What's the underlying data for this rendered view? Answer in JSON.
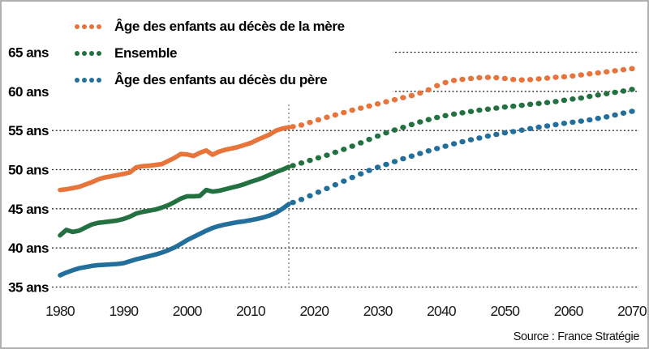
{
  "source_note": "Source : France Stratégie",
  "legend": {
    "items": [
      {
        "label": "Âge des enfants au décès de la mère",
        "color": "#E6743B"
      },
      {
        "label": "Ensemble",
        "color": "#237140"
      },
      {
        "label": "Âge des enfants au décès du père",
        "color": "#236F9C"
      }
    ]
  },
  "chart_data": {
    "type": "line",
    "title": "",
    "xlabel": "",
    "ylabel": "",
    "unit": "ans",
    "xlim": [
      1980,
      2070
    ],
    "ylim": [
      35,
      65
    ],
    "grid": "horizontal-dashed",
    "legend_position": "top-left",
    "projection_divider_year": 2016,
    "x_ticks": [
      1980,
      1990,
      2000,
      2010,
      2020,
      2030,
      2040,
      2050,
      2060,
      2070
    ],
    "y_ticks": [
      {
        "value": 65,
        "label": "65 ans"
      },
      {
        "value": 60,
        "label": "60 ans"
      },
      {
        "value": 55,
        "label": "55 ans"
      },
      {
        "value": 50,
        "label": "50 ans"
      },
      {
        "value": 45,
        "label": "45 ans"
      },
      {
        "value": 40,
        "label": "40 ans"
      },
      {
        "value": 35,
        "label": "35 ans"
      }
    ],
    "series": [
      {
        "name": "Âge des enfants au décès de la mère",
        "color": "#E6743B",
        "style_historical": "thick-line",
        "style_projection": "dots",
        "historical": [
          [
            1980,
            47.4
          ],
          [
            1981,
            47.5
          ],
          [
            1982,
            47.65
          ],
          [
            1983,
            47.8
          ],
          [
            1984,
            48.1
          ],
          [
            1985,
            48.4
          ],
          [
            1986,
            48.75
          ],
          [
            1987,
            49.0
          ],
          [
            1988,
            49.15
          ],
          [
            1989,
            49.3
          ],
          [
            1990,
            49.45
          ],
          [
            1991,
            49.65
          ],
          [
            1992,
            50.3
          ],
          [
            1993,
            50.45
          ],
          [
            1994,
            50.5
          ],
          [
            1995,
            50.6
          ],
          [
            1996,
            50.7
          ],
          [
            1997,
            51.1
          ],
          [
            1998,
            51.5
          ],
          [
            1999,
            52.0
          ],
          [
            2000,
            51.95
          ],
          [
            2001,
            51.75
          ],
          [
            2002,
            52.15
          ],
          [
            2003,
            52.45
          ],
          [
            2004,
            51.9
          ],
          [
            2005,
            52.3
          ],
          [
            2006,
            52.55
          ],
          [
            2007,
            52.7
          ],
          [
            2008,
            52.9
          ],
          [
            2009,
            53.15
          ],
          [
            2010,
            53.4
          ],
          [
            2011,
            53.8
          ],
          [
            2012,
            54.15
          ],
          [
            2013,
            54.5
          ],
          [
            2014,
            55.0
          ],
          [
            2015,
            55.25
          ],
          [
            2016,
            55.4
          ]
        ],
        "projection": [
          [
            2018,
            55.7
          ],
          [
            2020,
            56.2
          ],
          [
            2022,
            56.7
          ],
          [
            2024,
            57.15
          ],
          [
            2026,
            57.6
          ],
          [
            2028,
            58.0
          ],
          [
            2030,
            58.4
          ],
          [
            2032,
            58.8
          ],
          [
            2034,
            59.2
          ],
          [
            2036,
            59.6
          ],
          [
            2038,
            60.2
          ],
          [
            2040,
            61.0
          ],
          [
            2042,
            61.4
          ],
          [
            2044,
            61.6
          ],
          [
            2046,
            61.75
          ],
          [
            2048,
            61.8
          ],
          [
            2050,
            61.65
          ],
          [
            2052,
            61.45
          ],
          [
            2054,
            61.5
          ],
          [
            2056,
            61.65
          ],
          [
            2058,
            61.8
          ],
          [
            2060,
            61.9
          ],
          [
            2062,
            62.1
          ],
          [
            2064,
            62.3
          ],
          [
            2066,
            62.5
          ],
          [
            2068,
            62.7
          ],
          [
            2070,
            62.9
          ]
        ]
      },
      {
        "name": "Ensemble",
        "color": "#237140",
        "style_historical": "thick-line",
        "style_projection": "dots",
        "historical": [
          [
            1980,
            41.6
          ],
          [
            1981,
            42.3
          ],
          [
            1982,
            42.05
          ],
          [
            1983,
            42.2
          ],
          [
            1984,
            42.6
          ],
          [
            1985,
            43.0
          ],
          [
            1986,
            43.2
          ],
          [
            1987,
            43.3
          ],
          [
            1988,
            43.4
          ],
          [
            1989,
            43.5
          ],
          [
            1990,
            43.7
          ],
          [
            1991,
            44.0
          ],
          [
            1992,
            44.4
          ],
          [
            1993,
            44.6
          ],
          [
            1994,
            44.75
          ],
          [
            1995,
            44.9
          ],
          [
            1996,
            45.15
          ],
          [
            1997,
            45.45
          ],
          [
            1998,
            45.85
          ],
          [
            1999,
            46.3
          ],
          [
            2000,
            46.6
          ],
          [
            2001,
            46.6
          ],
          [
            2002,
            46.65
          ],
          [
            2003,
            47.4
          ],
          [
            2004,
            47.2
          ],
          [
            2005,
            47.3
          ],
          [
            2006,
            47.5
          ],
          [
            2007,
            47.7
          ],
          [
            2008,
            47.9
          ],
          [
            2009,
            48.15
          ],
          [
            2010,
            48.45
          ],
          [
            2011,
            48.7
          ],
          [
            2012,
            49.0
          ],
          [
            2013,
            49.35
          ],
          [
            2014,
            49.7
          ],
          [
            2015,
            50.0
          ],
          [
            2016,
            50.35
          ]
        ],
        "projection": [
          [
            2018,
            50.85
          ],
          [
            2020,
            51.35
          ],
          [
            2022,
            51.85
          ],
          [
            2024,
            52.4
          ],
          [
            2026,
            53.0
          ],
          [
            2028,
            53.65
          ],
          [
            2030,
            54.3
          ],
          [
            2032,
            54.9
          ],
          [
            2034,
            55.4
          ],
          [
            2036,
            55.95
          ],
          [
            2038,
            56.4
          ],
          [
            2040,
            56.8
          ],
          [
            2042,
            57.1
          ],
          [
            2044,
            57.35
          ],
          [
            2046,
            57.6
          ],
          [
            2048,
            57.8
          ],
          [
            2050,
            58.0
          ],
          [
            2052,
            58.15
          ],
          [
            2054,
            58.35
          ],
          [
            2056,
            58.5
          ],
          [
            2058,
            58.7
          ],
          [
            2060,
            58.95
          ],
          [
            2062,
            59.15
          ],
          [
            2064,
            59.45
          ],
          [
            2066,
            59.7
          ],
          [
            2068,
            59.95
          ],
          [
            2070,
            60.25
          ]
        ]
      },
      {
        "name": "Âge des enfants au décès du père",
        "color": "#236F9C",
        "style_historical": "thick-line",
        "style_projection": "dots",
        "historical": [
          [
            1980,
            36.5
          ],
          [
            1981,
            36.85
          ],
          [
            1982,
            37.15
          ],
          [
            1983,
            37.4
          ],
          [
            1984,
            37.55
          ],
          [
            1985,
            37.7
          ],
          [
            1986,
            37.8
          ],
          [
            1987,
            37.85
          ],
          [
            1988,
            37.9
          ],
          [
            1989,
            37.95
          ],
          [
            1990,
            38.05
          ],
          [
            1991,
            38.3
          ],
          [
            1992,
            38.55
          ],
          [
            1993,
            38.75
          ],
          [
            1994,
            38.95
          ],
          [
            1995,
            39.15
          ],
          [
            1996,
            39.4
          ],
          [
            1997,
            39.7
          ],
          [
            1998,
            40.05
          ],
          [
            1999,
            40.5
          ],
          [
            2000,
            41.0
          ],
          [
            2001,
            41.4
          ],
          [
            2002,
            41.8
          ],
          [
            2003,
            42.2
          ],
          [
            2004,
            42.55
          ],
          [
            2005,
            42.8
          ],
          [
            2006,
            43.0
          ],
          [
            2007,
            43.15
          ],
          [
            2008,
            43.3
          ],
          [
            2009,
            43.4
          ],
          [
            2010,
            43.55
          ],
          [
            2011,
            43.7
          ],
          [
            2012,
            43.9
          ],
          [
            2013,
            44.15
          ],
          [
            2014,
            44.5
          ],
          [
            2015,
            45.0
          ],
          [
            2016,
            45.6
          ]
        ],
        "projection": [
          [
            2018,
            46.2
          ],
          [
            2020,
            46.9
          ],
          [
            2022,
            47.6
          ],
          [
            2024,
            48.3
          ],
          [
            2026,
            49.0
          ],
          [
            2028,
            49.7
          ],
          [
            2030,
            50.3
          ],
          [
            2032,
            50.85
          ],
          [
            2034,
            51.4
          ],
          [
            2036,
            51.9
          ],
          [
            2038,
            52.4
          ],
          [
            2040,
            52.85
          ],
          [
            2042,
            53.3
          ],
          [
            2044,
            53.7
          ],
          [
            2046,
            54.05
          ],
          [
            2048,
            54.4
          ],
          [
            2050,
            54.7
          ],
          [
            2052,
            54.95
          ],
          [
            2054,
            55.25
          ],
          [
            2056,
            55.5
          ],
          [
            2058,
            55.75
          ],
          [
            2060,
            56.0
          ],
          [
            2062,
            56.2
          ],
          [
            2064,
            56.45
          ],
          [
            2066,
            56.75
          ],
          [
            2068,
            57.1
          ],
          [
            2070,
            57.45
          ]
        ]
      }
    ]
  }
}
